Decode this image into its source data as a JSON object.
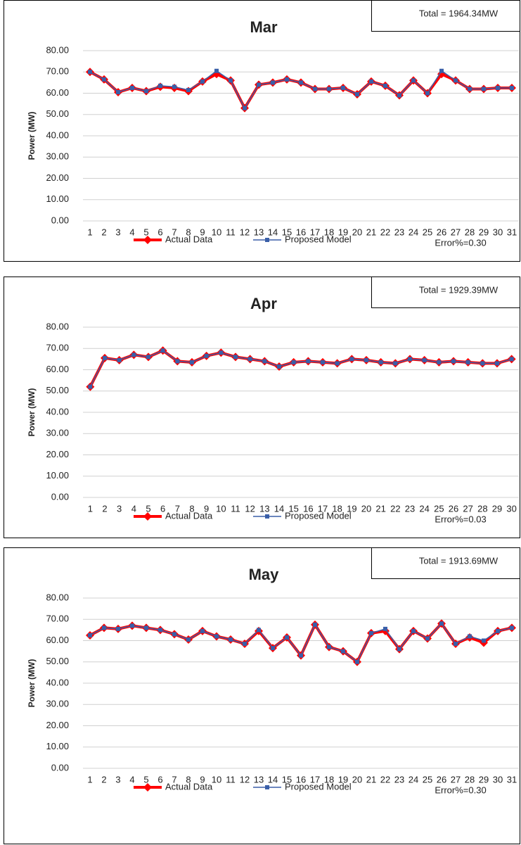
{
  "chart_data": [
    {
      "type": "line",
      "title": "Mar",
      "annotations": [
        "Total = 1964.34MW",
        "Error%=0.30"
      ],
      "y_label": "Power (MW)",
      "categories": [
        "1",
        "2",
        "3",
        "4",
        "5",
        "6",
        "7",
        "8",
        "9",
        "10",
        "11",
        "12",
        "13",
        "14",
        "15",
        "16",
        "17",
        "18",
        "19",
        "20",
        "21",
        "22",
        "23",
        "24",
        "25",
        "26",
        "27",
        "28",
        "29",
        "30",
        "31"
      ],
      "series": [
        {
          "name": "Actual Data",
          "color": "#ff0000",
          "values": [
            70,
            66.5,
            60.5,
            62.5,
            61,
            63,
            62.5,
            61,
            65.5,
            69,
            66,
            53,
            64,
            65,
            66.5,
            65,
            62,
            62,
            62.5,
            59.5,
            65.5,
            63.5,
            59,
            66,
            60,
            69,
            66,
            62,
            62,
            62.5,
            62.5
          ]
        },
        {
          "name": "Proposed Model",
          "color": "#3a5fa8",
          "values": [
            70,
            66.5,
            60.5,
            62.5,
            61,
            63.5,
            63,
            61.5,
            65.5,
            70.5,
            66,
            53,
            64,
            65,
            66.5,
            65,
            62,
            62,
            62.5,
            59.5,
            65.5,
            63.5,
            59,
            66,
            60,
            70.5,
            66,
            62,
            62,
            62.5,
            62.5
          ]
        }
      ],
      "ylim": [
        0,
        80
      ],
      "yticks": [
        {
          "value": 0,
          "label": "0.00"
        },
        {
          "value": 10,
          "label": "10.00"
        },
        {
          "value": 20,
          "label": "20.00"
        },
        {
          "value": 30,
          "label": "30.00"
        },
        {
          "value": 40,
          "label": "40.00"
        },
        {
          "value": 50,
          "label": "50.00"
        },
        {
          "value": 60,
          "label": "60.00"
        },
        {
          "value": 70,
          "label": "70.00"
        },
        {
          "value": 80,
          "label": "80.00"
        }
      ],
      "grid": true
    },
    {
      "type": "line",
      "title": "Apr",
      "annotations": [
        "Total = 1929.39MW",
        "Error%=0.03"
      ],
      "y_label": "Power (MW)",
      "categories": [
        "1",
        "2",
        "3",
        "4",
        "5",
        "6",
        "7",
        "8",
        "9",
        "10",
        "11",
        "12",
        "13",
        "14",
        "15",
        "16",
        "17",
        "18",
        "19",
        "20",
        "21",
        "22",
        "23",
        "24",
        "25",
        "26",
        "27",
        "28",
        "29",
        "30"
      ],
      "series": [
        {
          "name": "Actual Data",
          "color": "#ff0000",
          "values": [
            52,
            65.5,
            64.5,
            67,
            66,
            69,
            64,
            63.5,
            66.5,
            68,
            66,
            65,
            64,
            61.5,
            63.5,
            64,
            63.5,
            63,
            65,
            64.5,
            63.5,
            63,
            65,
            64.5,
            63.5,
            64,
            63.5,
            63,
            63,
            65
          ]
        },
        {
          "name": "Proposed Model",
          "color": "#3a5fa8",
          "values": [
            52,
            65.5,
            64.5,
            67,
            66,
            69,
            64,
            63.5,
            66.5,
            68,
            66,
            65,
            64,
            61.5,
            63.5,
            64,
            63.5,
            63,
            65,
            64.5,
            63.5,
            63,
            65,
            64.5,
            63.5,
            64,
            63.5,
            63,
            63,
            65
          ]
        }
      ],
      "ylim": [
        0,
        80
      ],
      "yticks": [
        {
          "value": 0,
          "label": "0.00"
        },
        {
          "value": 10,
          "label": "10.00"
        },
        {
          "value": 20,
          "label": "20.00"
        },
        {
          "value": 30,
          "label": "30.00"
        },
        {
          "value": 40,
          "label": "40.00"
        },
        {
          "value": 50,
          "label": "50.00"
        },
        {
          "value": 60,
          "label": "60.00"
        },
        {
          "value": 70,
          "label": "70.00"
        },
        {
          "value": 80,
          "label": "80.00"
        }
      ],
      "grid": true
    },
    {
      "type": "line",
      "title": "May",
      "annotations": [
        "Total = 1913.69MW",
        "Error%=0.30"
      ],
      "y_label": "Power (MW)",
      "categories": [
        "1",
        "2",
        "3",
        "4",
        "5",
        "6",
        "7",
        "8",
        "9",
        "10",
        "11",
        "12",
        "13",
        "14",
        "15",
        "16",
        "17",
        "18",
        "19",
        "20",
        "21",
        "22",
        "23",
        "24",
        "25",
        "26",
        "27",
        "28",
        "29",
        "30",
        "31"
      ],
      "series": [
        {
          "name": "Actual Data",
          "color": "#ff0000",
          "values": [
            62.5,
            66,
            65.5,
            67,
            66,
            65,
            63,
            60.5,
            64.5,
            62,
            60.5,
            58.5,
            64.5,
            56.5,
            61.5,
            53,
            67.5,
            57,
            55,
            50,
            63.5,
            64.5,
            56,
            64.5,
            61,
            68,
            58.5,
            61.5,
            59,
            64.5,
            66
          ]
        },
        {
          "name": "Proposed Model",
          "color": "#3a5fa8",
          "values": [
            62.5,
            66,
            65.5,
            67,
            66,
            65,
            63,
            60.5,
            64.5,
            62,
            60.5,
            58.5,
            65,
            56.5,
            61.5,
            53,
            67.5,
            57,
            55,
            50,
            63.5,
            65.5,
            56,
            64.5,
            61,
            68,
            58.5,
            62,
            60,
            64.5,
            66
          ]
        }
      ],
      "ylim": [
        0,
        80
      ],
      "yticks": [
        {
          "value": 0,
          "label": "0.00"
        },
        {
          "value": 10,
          "label": "10.00"
        },
        {
          "value": 20,
          "label": "20.00"
        },
        {
          "value": 30,
          "label": "30.00"
        },
        {
          "value": 40,
          "label": "40.00"
        },
        {
          "value": 50,
          "label": "50.00"
        },
        {
          "value": 60,
          "label": "60.00"
        },
        {
          "value": 70,
          "label": "70.00"
        },
        {
          "value": 80,
          "label": "80.00"
        }
      ],
      "grid": true
    }
  ]
}
